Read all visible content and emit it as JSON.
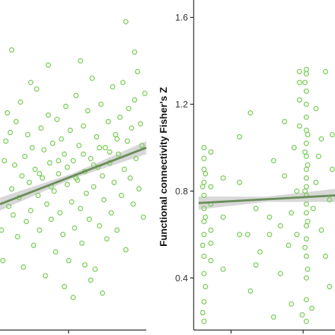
{
  "chart_data": [
    {
      "type": "scatter",
      "xlabel": "",
      "ylabel": "",
      "point_color": "#7ccd5a",
      "fit_color": "#6b8e5a",
      "band_color": "#c8c8c8",
      "fit_line": {
        "y_start": 0.74,
        "y_end": 1.0
      },
      "points": [
        [
          0.01,
          0.62
        ],
        [
          0.03,
          0.94
        ],
        [
          0.05,
          1.16
        ],
        [
          0.02,
          0.48
        ],
        [
          0.06,
          0.73
        ],
        [
          0.04,
          1.03
        ],
        [
          0.08,
          0.81
        ],
        [
          0.07,
          1.07
        ],
        [
          0.09,
          0.69
        ],
        [
          0.1,
          0.92
        ],
        [
          0.11,
          1.12
        ],
        [
          0.12,
          0.59
        ],
        [
          0.13,
          0.77
        ],
        [
          0.14,
          1.21
        ],
        [
          0.15,
          0.87
        ],
        [
          0.16,
          0.45
        ],
        [
          0.17,
          0.96
        ],
        [
          0.18,
          0.66
        ],
        [
          0.19,
          1.06
        ],
        [
          0.2,
          0.84
        ],
        [
          0.21,
          0.71
        ],
        [
          0.22,
          1.0
        ],
        [
          0.23,
          0.55
        ],
        [
          0.24,
          0.9
        ],
        [
          0.25,
          1.27
        ],
        [
          0.26,
          0.78
        ],
        [
          0.27,
          0.62
        ],
        [
          0.28,
          1.09
        ],
        [
          0.29,
          0.86
        ],
        [
          0.3,
          0.99
        ],
        [
          0.31,
          0.41
        ],
        [
          0.32,
          0.74
        ],
        [
          0.33,
          1.15
        ],
        [
          0.34,
          0.93
        ],
        [
          0.35,
          0.67
        ],
        [
          0.36,
          1.02
        ],
        [
          0.37,
          0.8
        ],
        [
          0.38,
          0.52
        ],
        [
          0.39,
          1.13
        ],
        [
          0.4,
          0.88
        ],
        [
          0.41,
          0.7
        ],
        [
          0.42,
          1.04
        ],
        [
          0.43,
          0.6
        ],
        [
          0.44,
          0.97
        ],
        [
          0.45,
          1.19
        ],
        [
          0.46,
          0.83
        ],
        [
          0.47,
          0.48
        ],
        [
          0.48,
          1.08
        ],
        [
          0.49,
          0.75
        ],
        [
          0.5,
          0.94
        ],
        [
          0.51,
          0.63
        ],
        [
          0.52,
          1.24
        ],
        [
          0.53,
          0.85
        ],
        [
          0.54,
          1.01
        ],
        [
          0.55,
          0.72
        ],
        [
          0.56,
          0.56
        ],
        [
          0.57,
          1.1
        ],
        [
          0.58,
          0.89
        ],
        [
          0.59,
          0.79
        ],
        [
          0.6,
          1.17
        ],
        [
          0.61,
          0.67
        ],
        [
          0.62,
          0.95
        ],
        [
          0.63,
          1.32
        ],
        [
          0.64,
          0.82
        ],
        [
          0.65,
          0.44
        ],
        [
          0.66,
          1.05
        ],
        [
          0.67,
          0.91
        ],
        [
          0.68,
          0.64
        ],
        [
          0.69,
          1.2
        ],
        [
          0.7,
          0.87
        ],
        [
          0.71,
          0.76
        ],
        [
          0.72,
          1.0
        ],
        [
          0.73,
          0.58
        ],
        [
          0.74,
          1.12
        ],
        [
          0.75,
          0.93
        ],
        [
          0.76,
          0.7
        ],
        [
          0.77,
          1.28
        ],
        [
          0.78,
          0.84
        ],
        [
          0.79,
          1.06
        ],
        [
          0.8,
          0.62
        ],
        [
          0.81,
          0.97
        ],
        [
          0.82,
          1.14
        ],
        [
          0.83,
          0.78
        ],
        [
          0.84,
          1.3
        ],
        [
          0.85,
          0.9
        ],
        [
          0.86,
          0.53
        ],
        [
          0.87,
          1.03
        ],
        [
          0.88,
          1.18
        ],
        [
          0.89,
          0.86
        ],
        [
          0.9,
          1.09
        ],
        [
          0.91,
          0.74
        ],
        [
          0.92,
          1.22
        ],
        [
          0.93,
          0.95
        ],
        [
          0.94,
          1.35
        ],
        [
          0.95,
          0.81
        ],
        [
          0.96,
          1.11
        ],
        [
          0.97,
          1.01
        ],
        [
          0.98,
          0.68
        ],
        [
          0.99,
          1.25
        ],
        [
          0.55,
          1.4
        ],
        [
          0.33,
          1.38
        ],
        [
          0.62,
          0.39
        ],
        [
          0.44,
          0.36
        ],
        [
          0.7,
          0.33
        ],
        [
          0.58,
          0.46
        ],
        [
          0.86,
          1.58
        ],
        [
          0.92,
          1.44
        ],
        [
          0.21,
          1.3
        ],
        [
          0.08,
          1.45
        ],
        [
          0.5,
          0.31
        ],
        [
          0.27,
          0.88
        ],
        [
          0.35,
          0.82
        ],
        [
          0.4,
          0.94
        ],
        [
          0.46,
          0.91
        ],
        [
          0.52,
          0.86
        ],
        [
          0.57,
          0.97
        ],
        [
          0.64,
          0.92
        ],
        [
          0.68,
          1.0
        ],
        [
          0.75,
          0.98
        ],
        [
          0.8,
          1.04
        ]
      ]
    },
    {
      "type": "scatter",
      "xlabel": "",
      "ylabel": "Functional connectivity Fisher's Z",
      "ylim": [
        0.16,
        1.68
      ],
      "yticks": [
        "0.4",
        "0.8",
        "1.2",
        "1.6"
      ],
      "ytick_values": [
        0.4,
        0.8,
        1.2,
        1.6
      ],
      "point_color": "#7ccd5a",
      "fit_color": "#6b8e5a",
      "band_color": "#c8c8c8",
      "fit_line": {
        "y_start": 0.745,
        "y_end": 0.78
      },
      "points": [
        [
          0.04,
          0.2
        ],
        [
          0.04,
          0.29
        ],
        [
          0.04,
          0.42
        ],
        [
          0.04,
          0.5
        ],
        [
          0.04,
          0.6
        ],
        [
          0.04,
          0.66
        ],
        [
          0.04,
          0.72
        ],
        [
          0.04,
          0.78
        ],
        [
          0.04,
          0.84
        ],
        [
          0.04,
          0.9
        ],
        [
          0.04,
          0.95
        ],
        [
          0.04,
          1.0
        ],
        [
          0.03,
          0.55
        ],
        [
          0.05,
          0.68
        ],
        [
          0.05,
          0.88
        ],
        [
          0.03,
          0.24
        ],
        [
          0.05,
          0.36
        ],
        [
          0.03,
          0.82
        ],
        [
          0.09,
          0.48
        ],
        [
          0.09,
          0.56
        ],
        [
          0.09,
          0.62
        ],
        [
          0.09,
          0.74
        ],
        [
          0.09,
          0.82
        ],
        [
          0.09,
          0.98
        ],
        [
          0.18,
          0.44
        ],
        [
          0.18,
          0.68
        ],
        [
          0.18,
          0.86
        ],
        [
          0.3,
          1.05
        ],
        [
          0.3,
          0.6
        ],
        [
          0.3,
          0.84
        ],
        [
          0.38,
          1.16
        ],
        [
          0.38,
          0.34
        ],
        [
          0.36,
          0.6
        ],
        [
          0.42,
          0.46
        ],
        [
          0.42,
          0.72
        ],
        [
          0.45,
          0.52
        ],
        [
          0.52,
          0.6
        ],
        [
          0.52,
          0.68
        ],
        [
          0.55,
          0.94
        ],
        [
          0.55,
          0.22
        ],
        [
          0.6,
          0.42
        ],
        [
          0.6,
          0.64
        ],
        [
          0.63,
          0.87
        ],
        [
          0.63,
          1.12
        ],
        [
          0.66,
          0.55
        ],
        [
          0.68,
          0.7
        ],
        [
          0.68,
          0.28
        ],
        [
          0.7,
          1.0
        ],
        [
          0.72,
          0.6
        ],
        [
          0.72,
          0.8
        ],
        [
          0.74,
          1.35
        ],
        [
          0.74,
          1.3
        ],
        [
          0.74,
          1.22
        ],
        [
          0.74,
          1.1
        ],
        [
          0.79,
          0.2
        ],
        [
          0.79,
          0.3
        ],
        [
          0.79,
          0.4
        ],
        [
          0.79,
          0.5
        ],
        [
          0.79,
          0.58
        ],
        [
          0.79,
          0.64
        ],
        [
          0.79,
          0.7
        ],
        [
          0.79,
          0.74
        ],
        [
          0.79,
          0.78
        ],
        [
          0.79,
          0.82
        ],
        [
          0.79,
          0.86
        ],
        [
          0.79,
          0.9
        ],
        [
          0.79,
          0.96
        ],
        [
          0.79,
          1.02
        ],
        [
          0.79,
          1.08
        ],
        [
          0.79,
          1.14
        ],
        [
          0.79,
          1.2
        ],
        [
          0.79,
          1.26
        ],
        [
          0.79,
          1.34
        ],
        [
          0.79,
          1.36
        ],
        [
          0.8,
          0.44
        ],
        [
          0.8,
          0.66
        ],
        [
          0.8,
          0.92
        ],
        [
          0.8,
          1.06
        ],
        [
          0.78,
          0.54
        ],
        [
          0.78,
          0.8
        ],
        [
          0.78,
          0.98
        ],
        [
          0.78,
          1.3
        ],
        [
          0.83,
          0.26
        ],
        [
          0.84,
          0.72
        ],
        [
          0.86,
          0.84
        ],
        [
          0.88,
          0.96
        ],
        [
          0.9,
          0.62
        ],
        [
          0.9,
          1.04
        ],
        [
          0.93,
          1.35
        ],
        [
          0.93,
          0.5
        ],
        [
          0.96,
          0.36
        ],
        [
          0.96,
          0.76
        ],
        [
          0.98,
          0.9
        ],
        [
          0.98,
          1.06
        ],
        [
          0.76,
          0.23
        ],
        [
          0.86,
          1.18
        ]
      ]
    }
  ]
}
